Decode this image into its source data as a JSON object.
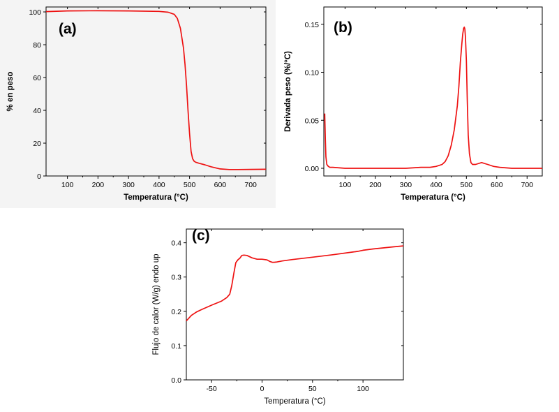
{
  "chart_data": [
    {
      "id": "a",
      "type": "line",
      "panel_label": "(a)",
      "xlabel": "Temperatura (°C)",
      "ylabel": "% en peso",
      "xlim": [
        30,
        750
      ],
      "ylim": [
        0,
        103
      ],
      "xticks": [
        100,
        200,
        300,
        400,
        500,
        600,
        700
      ],
      "yticks": [
        0,
        20,
        40,
        60,
        80,
        100
      ],
      "color": "#ee1111",
      "series": [
        {
          "x": [
            30,
            100,
            200,
            300,
            400,
            430,
            450,
            460,
            470,
            480,
            485,
            490,
            495,
            500,
            505,
            510,
            515,
            520,
            530,
            550,
            570,
            600,
            630,
            660,
            700,
            750
          ],
          "y": [
            100.2,
            100.6,
            100.7,
            100.6,
            100.3,
            99.8,
            98.5,
            96.0,
            90.0,
            78.0,
            68.0,
            55.0,
            40.0,
            26.0,
            15.0,
            10.5,
            9.0,
            8.4,
            7.8,
            6.8,
            5.6,
            4.3,
            3.9,
            3.9,
            4.0,
            4.1
          ]
        }
      ]
    },
    {
      "id": "b",
      "type": "line",
      "panel_label": "(b)",
      "xlabel": "Temperatura (°C)",
      "ylabel": "Derivada peso (%/°C)",
      "xlim": [
        30,
        750
      ],
      "ylim": [
        -0.008,
        0.168
      ],
      "xticks": [
        100,
        200,
        300,
        400,
        500,
        600,
        700
      ],
      "yticks": [
        0.0,
        0.05,
        0.1,
        0.15
      ],
      "ytick_labels": [
        "0.00",
        "0.05",
        "0.10",
        "0.15"
      ],
      "color": "#ee1111",
      "series": [
        {
          "x": [
            33,
            35,
            37,
            40,
            45,
            50,
            60,
            100,
            200,
            300,
            350,
            380,
            400,
            420,
            430,
            440,
            450,
            460,
            470,
            475,
            480,
            485,
            488,
            491,
            493,
            495,
            497,
            500,
            503,
            506,
            510,
            515,
            520,
            530,
            550,
            570,
            590,
            610,
            650,
            700,
            750
          ],
          "y": [
            0.057,
            0.03,
            0.012,
            0.004,
            0.002,
            0.001,
            0.001,
            0.0,
            0.0,
            0.0,
            0.001,
            0.001,
            0.002,
            0.004,
            0.007,
            0.013,
            0.024,
            0.04,
            0.065,
            0.085,
            0.11,
            0.13,
            0.14,
            0.146,
            0.147,
            0.145,
            0.136,
            0.112,
            0.07,
            0.035,
            0.015,
            0.006,
            0.004,
            0.004,
            0.006,
            0.004,
            0.002,
            0.001,
            0.0,
            0.0,
            0.0
          ]
        }
      ]
    },
    {
      "id": "c",
      "type": "line",
      "panel_label": "(c)",
      "xlabel": "Temperatura (°C)",
      "ylabel": "Flujo de calor (W/g) endo up",
      "xlim": [
        -75,
        140
      ],
      "ylim": [
        0.0,
        0.44
      ],
      "xticks": [
        -50,
        0,
        50,
        100
      ],
      "yticks": [
        0.0,
        0.1,
        0.2,
        0.3,
        0.4
      ],
      "ytick_labels": [
        "0.0",
        "0.1",
        "0.2",
        "0.3",
        "0.4"
      ],
      "color": "#ee1111",
      "series": [
        {
          "x": [
            -75,
            -70,
            -65,
            -60,
            -50,
            -40,
            -35,
            -32,
            -30,
            -28,
            -26,
            -24,
            -22,
            -20,
            -18,
            -15,
            -10,
            -5,
            0,
            5,
            8,
            10,
            12,
            15,
            20,
            30,
            50,
            70,
            90,
            95,
            100,
            110,
            120,
            130,
            140
          ],
          "y": [
            0.172,
            0.188,
            0.198,
            0.205,
            0.218,
            0.23,
            0.24,
            0.25,
            0.275,
            0.31,
            0.342,
            0.35,
            0.355,
            0.363,
            0.364,
            0.363,
            0.356,
            0.352,
            0.352,
            0.35,
            0.345,
            0.343,
            0.343,
            0.344,
            0.347,
            0.351,
            0.358,
            0.365,
            0.373,
            0.375,
            0.378,
            0.382,
            0.385,
            0.388,
            0.391
          ]
        }
      ]
    }
  ]
}
